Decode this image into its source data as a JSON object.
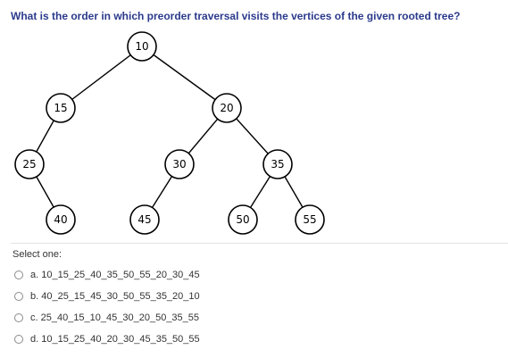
{
  "question": {
    "text": "What is the order in which preorder traversal visits the vertices of the given rooted tree?"
  },
  "tree": {
    "nodes": [
      {
        "id": "n10",
        "label": "10"
      },
      {
        "id": "n15",
        "label": "15"
      },
      {
        "id": "n20",
        "label": "20"
      },
      {
        "id": "n25",
        "label": "25"
      },
      {
        "id": "n30",
        "label": "30"
      },
      {
        "id": "n35",
        "label": "35"
      },
      {
        "id": "n40",
        "label": "40"
      },
      {
        "id": "n45",
        "label": "45"
      },
      {
        "id": "n50",
        "label": "50"
      },
      {
        "id": "n55",
        "label": "55"
      }
    ],
    "edges": [
      [
        "n10",
        "n15"
      ],
      [
        "n10",
        "n20"
      ],
      [
        "n15",
        "n25"
      ],
      [
        "n25",
        "n40"
      ],
      [
        "n20",
        "n30"
      ],
      [
        "n20",
        "n35"
      ],
      [
        "n30",
        "n45"
      ],
      [
        "n35",
        "n50"
      ],
      [
        "n35",
        "n55"
      ]
    ]
  },
  "answer": {
    "prompt": "Select one:",
    "options": [
      {
        "key": "a",
        "text": "a. 10_15_25_40_35_50_55_20_30_45"
      },
      {
        "key": "b",
        "text": "b. 40_25_15_45_30_50_55_35_20_10"
      },
      {
        "key": "c",
        "text": "c. 25_40_15_10_45_30_20_50_35_55"
      },
      {
        "key": "d",
        "text": "d. 10_15_25_40_20_30_45_35_50_55"
      }
    ]
  }
}
